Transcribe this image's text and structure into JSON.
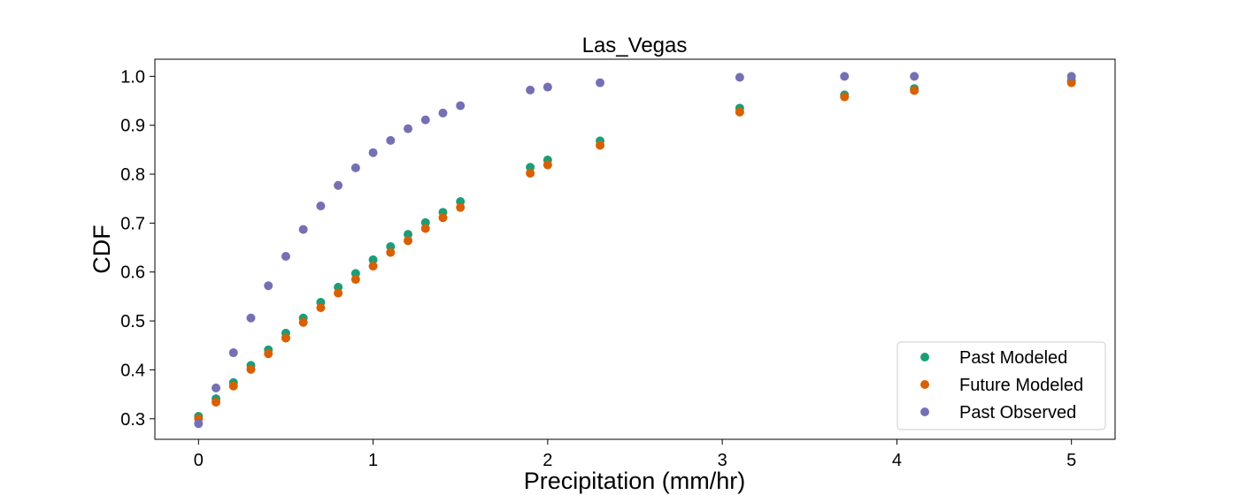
{
  "chart_data": {
    "type": "scatter",
    "title": "Las_Vegas",
    "xlabel": "Precipitation (mm/hr)",
    "ylabel": "CDF",
    "xlim": [
      -0.25,
      5.25
    ],
    "ylim": [
      0.258,
      1.035
    ],
    "xticks": [
      0,
      1,
      2,
      3,
      4,
      5
    ],
    "xtick_labels": [
      "0",
      "1",
      "2",
      "3",
      "4",
      "5"
    ],
    "yticks": [
      0.3,
      0.4,
      0.5,
      0.6,
      0.7,
      0.8,
      0.9,
      1.0
    ],
    "ytick_labels": [
      "0.3",
      "0.4",
      "0.5",
      "0.6",
      "0.7",
      "0.8",
      "0.9",
      "1.0"
    ],
    "grid": false,
    "legend_position": "lower-right",
    "series": [
      {
        "name": "Past Modeled",
        "color": "#1b9e77",
        "x": [
          0,
          0.1,
          0.2,
          0.3,
          0.4,
          0.5,
          0.6,
          0.7,
          0.8,
          0.9,
          1.0,
          1.1,
          1.2,
          1.3,
          1.4,
          1.5,
          1.9,
          2.0,
          2.3,
          3.1,
          3.7,
          4.1,
          5.0
        ],
        "y": [
          0.305,
          0.341,
          0.374,
          0.409,
          0.441,
          0.475,
          0.506,
          0.538,
          0.569,
          0.597,
          0.625,
          0.652,
          0.677,
          0.701,
          0.722,
          0.744,
          0.814,
          0.829,
          0.868,
          0.935,
          0.962,
          0.975,
          0.991
        ]
      },
      {
        "name": "Future Modeled",
        "color": "#d95f02",
        "x": [
          0,
          0.1,
          0.2,
          0.3,
          0.4,
          0.5,
          0.6,
          0.7,
          0.8,
          0.9,
          1.0,
          1.1,
          1.2,
          1.3,
          1.4,
          1.5,
          1.9,
          2.0,
          2.3,
          3.1,
          3.7,
          4.1,
          5.0
        ],
        "y": [
          0.3,
          0.334,
          0.367,
          0.401,
          0.433,
          0.465,
          0.497,
          0.527,
          0.557,
          0.585,
          0.612,
          0.64,
          0.664,
          0.689,
          0.711,
          0.732,
          0.802,
          0.819,
          0.859,
          0.927,
          0.958,
          0.971,
          0.987
        ]
      },
      {
        "name": "Past Observed",
        "color": "#7570b3",
        "x": [
          0,
          0.1,
          0.2,
          0.3,
          0.4,
          0.5,
          0.6,
          0.7,
          0.8,
          0.9,
          1.0,
          1.1,
          1.2,
          1.3,
          1.4,
          1.5,
          1.9,
          2.0,
          2.3,
          3.1,
          3.7,
          4.1,
          5.0
        ],
        "y": [
          0.29,
          0.363,
          0.435,
          0.506,
          0.572,
          0.632,
          0.687,
          0.735,
          0.777,
          0.813,
          0.844,
          0.869,
          0.893,
          0.911,
          0.925,
          0.94,
          0.972,
          0.978,
          0.987,
          0.998,
          1.0,
          1.0,
          1.0
        ]
      }
    ]
  }
}
